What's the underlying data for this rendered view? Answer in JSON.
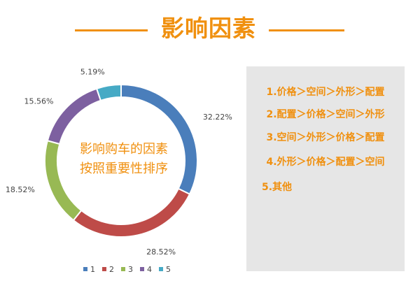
{
  "header": {
    "title": "影响因素"
  },
  "center_text": {
    "line1": "影响购车的因素",
    "line2": "按照重要性排序"
  },
  "panel": {
    "items": [
      "1.价格＞空间＞外形＞配置",
      "2.配置＞价格＞空间＞外形",
      "3.空间＞外形＞价格＞配置",
      "4.外形＞价格＞配置＞空间",
      "5.其他"
    ]
  },
  "chart_data": {
    "type": "pie",
    "donut": true,
    "categories": [
      "1",
      "2",
      "3",
      "4",
      "5"
    ],
    "values": [
      32.22,
      28.52,
      18.52,
      15.56,
      5.19
    ],
    "labels": [
      "32.22%",
      "28.52%",
      "18.52%",
      "15.56%",
      "5.19%"
    ],
    "colors": [
      "#4a7ebb",
      "#be4b48",
      "#98b954",
      "#7d60a0",
      "#46aac5"
    ],
    "legend_position": "bottom"
  }
}
